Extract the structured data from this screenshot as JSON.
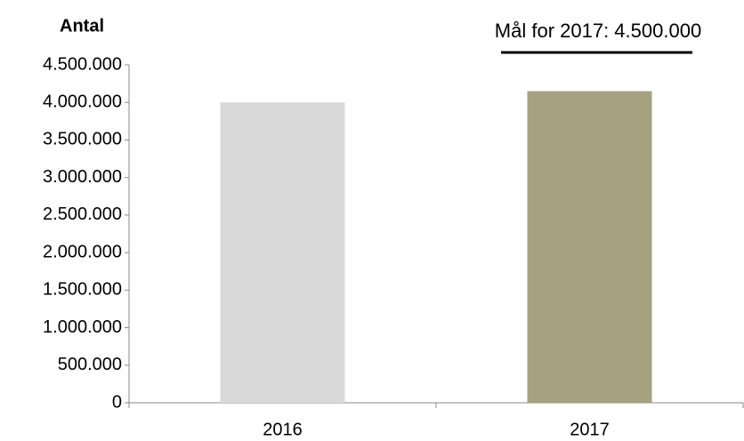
{
  "chart_data": {
    "type": "bar",
    "y_label": "Antal",
    "annotation": "Mål for 2017: 4.500.000",
    "categories": [
      "2016",
      "2017"
    ],
    "values": [
      4000000,
      4150000
    ],
    "colors": [
      "#d9d9d9",
      "#a6a17e"
    ],
    "ylim": [
      0,
      4500000
    ],
    "yticks": [
      0,
      {
        "value": 500000,
        "label": "500.000"
      },
      {
        "value": 1000000,
        "label": "1.000.000"
      },
      {
        "value": 1500000,
        "label": "1.500.000"
      },
      {
        "value": 2000000,
        "label": "2.000.000"
      },
      {
        "value": 2500000,
        "label": "2.500.000"
      },
      {
        "value": 3000000,
        "label": "3.000.000"
      },
      {
        "value": 3500000,
        "label": "3.500.000"
      },
      {
        "value": 4000000,
        "label": "4.000.000"
      },
      {
        "value": 4500000,
        "label": "4.500.000"
      }
    ],
    "grid": false
  }
}
